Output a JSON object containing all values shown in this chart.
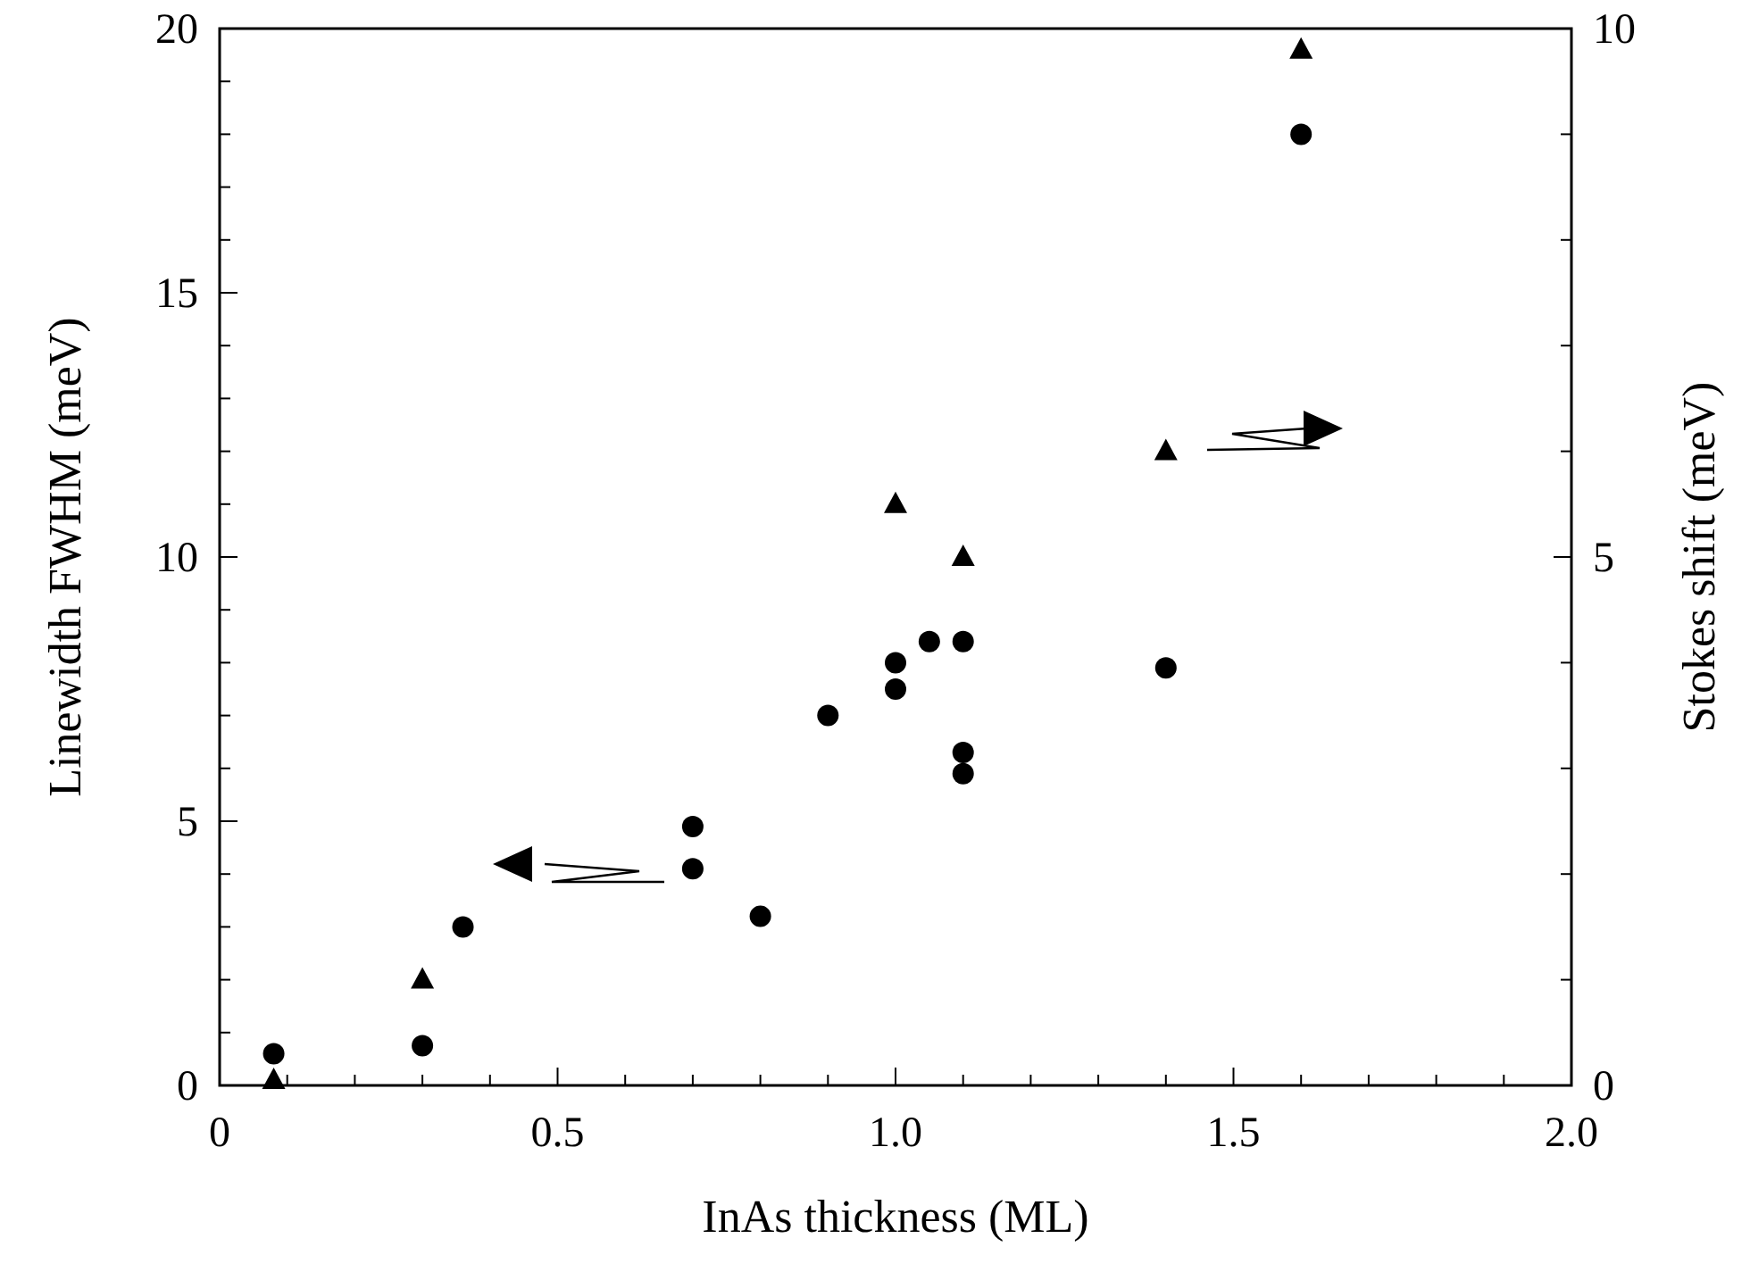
{
  "chart_data": {
    "type": "scatter",
    "xlabel": "InAs thickness (ML)",
    "ylabel": "Linewidth FWHM (meV)",
    "y2label": "Stokes shift (meV)",
    "xlim": [
      0,
      2.0
    ],
    "ylim": [
      0,
      20
    ],
    "y2lim": [
      0,
      10
    ],
    "xticks": [
      0,
      {
        "value": 0.1,
        "label": null
      },
      {
        "value": 0.2,
        "label": null
      },
      {
        "value": 0.3,
        "label": null
      },
      {
        "value": 0.4,
        "label": null
      },
      0.5,
      {
        "value": 0.6,
        "label": null
      },
      {
        "value": 0.7,
        "label": null
      },
      {
        "value": 0.8,
        "label": null
      },
      {
        "value": 0.9,
        "label": null
      },
      {
        "value": 1,
        "label": "1.0"
      },
      {
        "value": 1.1,
        "label": null
      },
      {
        "value": 1.2,
        "label": null
      },
      {
        "value": 1.3,
        "label": null
      },
      {
        "value": 1.4,
        "label": null
      },
      1.5,
      {
        "value": 1.6,
        "label": null
      },
      {
        "value": 1.7,
        "label": null
      },
      {
        "value": 1.8,
        "label": null
      },
      {
        "value": 1.9,
        "label": null
      },
      {
        "value": 2,
        "label": "2.0"
      }
    ],
    "yticks": [
      0,
      {
        "value": 1,
        "label": null
      },
      {
        "value": 2,
        "label": null
      },
      {
        "value": 3,
        "label": null
      },
      {
        "value": 4,
        "label": null
      },
      5,
      {
        "value": 6,
        "label": null
      },
      {
        "value": 7,
        "label": null
      },
      {
        "value": 8,
        "label": null
      },
      {
        "value": 9,
        "label": null
      },
      10,
      {
        "value": 11,
        "label": null
      },
      {
        "value": 12,
        "label": null
      },
      {
        "value": 13,
        "label": null
      },
      {
        "value": 14,
        "label": null
      },
      15,
      {
        "value": 16,
        "label": null
      },
      {
        "value": 17,
        "label": null
      },
      {
        "value": 18,
        "label": null
      },
      {
        "value": 19,
        "label": null
      },
      20
    ],
    "y2ticks": [
      0,
      {
        "value": 1,
        "label": null
      },
      {
        "value": 2,
        "label": null
      },
      {
        "value": 3,
        "label": null
      },
      {
        "value": 4,
        "label": null
      },
      5,
      {
        "value": 6,
        "label": null
      },
      {
        "value": 7,
        "label": null
      },
      {
        "value": 8,
        "label": null
      },
      {
        "value": 9,
        "label": null
      },
      10
    ],
    "grid": false,
    "series": [
      {
        "color": "#000000",
        "marker": "circle",
        "x": [
          0.08,
          0.3,
          0.36,
          0.7,
          0.7,
          0.8,
          0.9,
          1.0,
          1.0,
          1.05,
          1.1,
          1.1,
          1.1,
          1.4,
          1.6
        ],
        "values": [
          0.6,
          0.75,
          3.0,
          4.9,
          4.1,
          3.2,
          7.0,
          8.0,
          7.5,
          8.4,
          8.4,
          6.3,
          5.9,
          7.9,
          18.0
        ]
      },
      {
        "color": "#000000",
        "marker": "triangle",
        "axis": "y2",
        "x": [
          0.08,
          0.3,
          1.0,
          1.1,
          1.4,
          1.6
        ],
        "values": [
          0.05,
          1.0,
          5.5,
          5.0,
          6.0,
          9.8
        ]
      }
    ]
  }
}
